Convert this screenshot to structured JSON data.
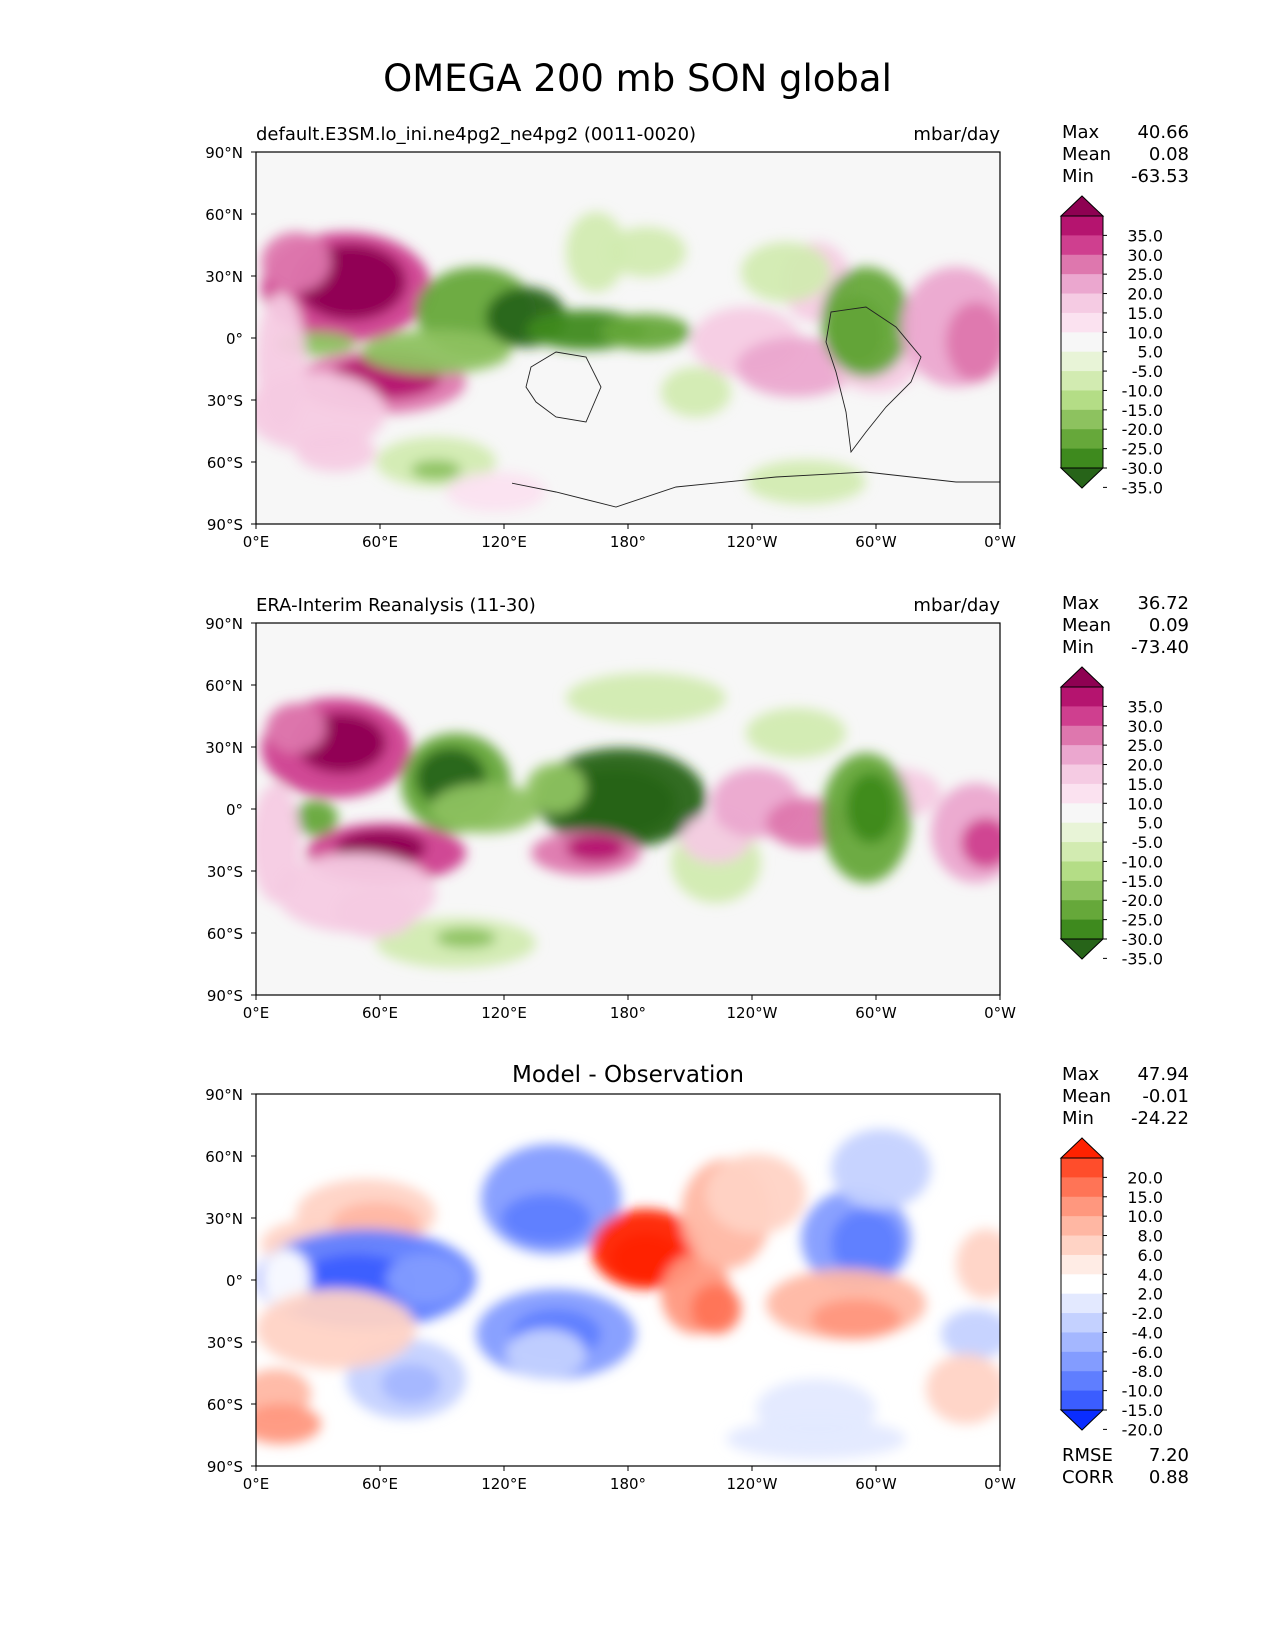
{
  "title": "OMEGA 200 mb SON global",
  "lat_ticks": [
    "90°N",
    "60°N",
    "30°N",
    "0°",
    "30°S",
    "60°S",
    "90°S"
  ],
  "lon_ticks": [
    "0°E",
    "60°E",
    "120°E",
    "180°",
    "120°W",
    "60°W",
    "0°W"
  ],
  "stat_labels": {
    "max": "Max",
    "mean": "Mean",
    "min": "Min",
    "rmse": "RMSE",
    "corr": "CORR"
  },
  "panels": [
    {
      "id": "model",
      "title_left": "default.E3SM.lo_ini.ne4pg2_ne4pg2 (0011-0020)",
      "title_center": "",
      "units": "mbar/day",
      "stats": {
        "max": "40.66",
        "mean": "0.08",
        "min": "-63.53"
      },
      "colorbar": {
        "labels": [
          "35.0",
          "30.0",
          "25.0",
          "20.0",
          "15.0",
          "10.0",
          "5.0",
          "-5.0",
          "-10.0",
          "-15.0",
          "-20.0",
          "-25.0",
          "-30.0",
          "-35.0"
        ],
        "colors": [
          "#8e0152",
          "#b5146f",
          "#cf3f8f",
          "#de77ae",
          "#eba7cf",
          "#f5cbe3",
          "#fbe2f0",
          "#f7f7f7",
          "#e8f4d7",
          "#d2ebb1",
          "#b4dd86",
          "#8dc25f",
          "#66a83a",
          "#3e8a1e",
          "#276419"
        ]
      }
    },
    {
      "id": "obs",
      "title_left": "ERA-Interim Reanalysis (11-30)",
      "title_center": "",
      "units": "mbar/day",
      "stats": {
        "max": "36.72",
        "mean": "0.09",
        "min": "-73.40"
      },
      "colorbar": {
        "labels": [
          "35.0",
          "30.0",
          "25.0",
          "20.0",
          "15.0",
          "10.0",
          "5.0",
          "-5.0",
          "-10.0",
          "-15.0",
          "-20.0",
          "-25.0",
          "-30.0",
          "-35.0"
        ],
        "colors": [
          "#8e0152",
          "#b5146f",
          "#cf3f8f",
          "#de77ae",
          "#eba7cf",
          "#f5cbe3",
          "#fbe2f0",
          "#f7f7f7",
          "#e8f4d7",
          "#d2ebb1",
          "#b4dd86",
          "#8dc25f",
          "#66a83a",
          "#3e8a1e",
          "#276419"
        ]
      }
    },
    {
      "id": "diff",
      "title_left": "",
      "title_center": "Model - Observation",
      "units": "",
      "stats": {
        "max": "47.94",
        "mean": "-0.01",
        "min": "-24.22"
      },
      "rmse": "7.20",
      "corr": "0.88",
      "colorbar": {
        "labels": [
          "20.0",
          "15.0",
          "10.0",
          "8.0",
          "6.0",
          "4.0",
          "2.0",
          "-2.0",
          "-4.0",
          "-6.0",
          "-8.0",
          "-10.0",
          "-15.0",
          "-20.0"
        ],
        "colors": [
          "#ff2200",
          "#ff4d2b",
          "#ff7456",
          "#ff977e",
          "#ffb7a3",
          "#ffd3c5",
          "#ffece5",
          "#ffffff",
          "#e3e9ff",
          "#c4d1ff",
          "#a4b7ff",
          "#839cff",
          "#5f7eff",
          "#3b5dff",
          "#0a2dff"
        ]
      }
    }
  ],
  "colors": {
    "model_obs_positive": "#8e0152",
    "model_obs_negative": "#276419",
    "diff_positive": "#ff2200",
    "diff_negative": "#0a2dff",
    "map_background": "#f7f7f7"
  }
}
